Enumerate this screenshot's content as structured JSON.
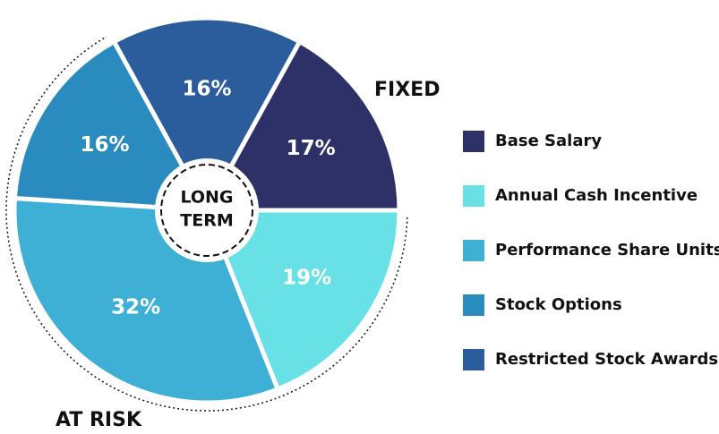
{
  "chart_data": {
    "type": "pie",
    "categories": [
      "Base Salary",
      "Annual Cash Incentive",
      "Performance Share Units",
      "Stock Options",
      "Restricted Stock Awards"
    ],
    "values": [
      17,
      19,
      32,
      16,
      16
    ],
    "value_labels": [
      "17%",
      "19%",
      "32%",
      "16%",
      "16%"
    ],
    "colors": [
      "#2e3168",
      "#67e0e6",
      "#3eb0d6",
      "#2a8bbf",
      "#2b5d9c"
    ],
    "annotations": [
      "FIXED",
      "AT RISK"
    ],
    "center_label": [
      "LONG",
      "TERM"
    ],
    "legend": "right"
  }
}
